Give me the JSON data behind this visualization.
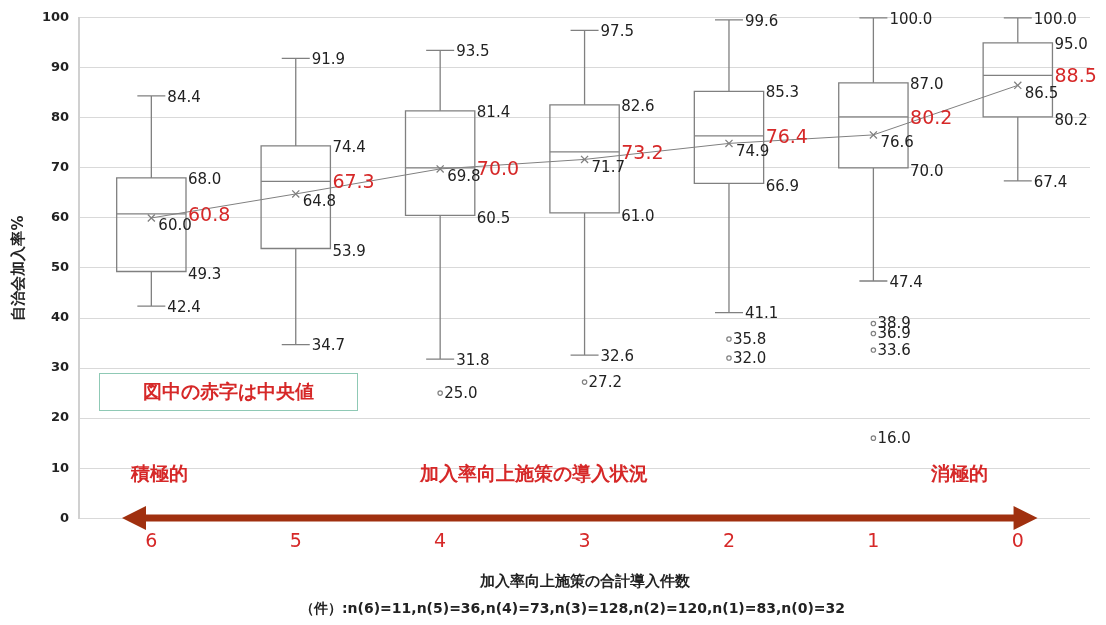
{
  "chart_data": {
    "type": "box",
    "ylabel": "自治会加入率%",
    "xlabel": "加入率向上施策の合計導入件数",
    "categories": [
      "6",
      "5",
      "4",
      "3",
      "2",
      "1",
      "0"
    ],
    "series": [
      {
        "type": "line",
        "color": "#808080",
        "values": [
          60.0,
          64.8,
          69.8,
          71.7,
          74.9,
          76.6,
          86.5
        ],
        "value_labels": [
          "60.0",
          "64.8",
          "69.8",
          "71.7",
          "74.9",
          "76.6",
          "86.5"
        ]
      },
      {
        "type": "box",
        "color": "#808080",
        "boxes": [
          {
            "low": 42.4,
            "q1": 49.3,
            "median": 60.8,
            "q3": 68.0,
            "high": 84.4
          },
          {
            "low": 34.7,
            "q1": 53.9,
            "median": 67.3,
            "q3": 74.4,
            "high": 91.9
          },
          {
            "low": 31.8,
            "q1": 60.5,
            "median": 70.0,
            "q3": 81.4,
            "high": 93.5
          },
          {
            "low": 32.6,
            "q1": 61.0,
            "median": 73.2,
            "q3": 82.6,
            "high": 97.5
          },
          {
            "low": 41.1,
            "q1": 66.9,
            "median": 76.4,
            "q3": 85.3,
            "high": 99.6
          },
          {
            "low": 47.4,
            "q1": 70.0,
            "median": 80.2,
            "q3": 87.0,
            "high": 100.0
          },
          {
            "low": 67.4,
            "q1": 80.2,
            "median": 88.5,
            "q3": 95.0,
            "high": 100.0
          }
        ]
      },
      {
        "type": "scatter",
        "color": "#808080",
        "marker": "circle",
        "x": [
          "4",
          "3",
          "2",
          "2",
          "1",
          "1",
          "1",
          "1"
        ],
        "values": [
          25.0,
          27.2,
          35.8,
          32.0,
          38.9,
          36.9,
          33.6,
          16.0
        ],
        "value_labels": [
          "25.0",
          "27.2",
          "35.8",
          "32.0",
          "38.9",
          "36.9",
          "33.6",
          "16.0"
        ]
      }
    ],
    "marker": "cross",
    "ylim": [
      0,
      100
    ],
    "yticks": [
      0,
      10,
      20,
      30,
      40,
      50,
      60,
      70,
      80,
      90,
      100
    ],
    "grid": "y",
    "legend": false,
    "annotations": [
      "図中の赤字は中央値",
      "積極的",
      "加入率向上施策の導入状況",
      "消極的",
      "（件）:n(6)=11,n(5)=36,n(4)=73,n(3)=128,n(2)=120,n(1)=83,n(0)=32",
      {
        "text": "84.4",
        "x": "6",
        "y": 84.4
      },
      {
        "text": "68.0",
        "x": "6",
        "y": 68.0
      },
      {
        "text": "60.8",
        "x": "6",
        "y": 60.8
      },
      {
        "text": "49.3",
        "x": "6",
        "y": 49.3
      },
      {
        "text": "42.4",
        "x": "6",
        "y": 42.4
      },
      {
        "text": "91.9",
        "x": "5",
        "y": 91.9
      },
      {
        "text": "74.4",
        "x": "5",
        "y": 74.4
      },
      {
        "text": "67.3",
        "x": "5",
        "y": 67.3
      },
      {
        "text": "53.9",
        "x": "5",
        "y": 53.9
      },
      {
        "text": "34.7",
        "x": "5",
        "y": 34.7
      },
      {
        "text": "93.5",
        "x": "4",
        "y": 93.5
      },
      {
        "text": "81.4",
        "x": "4",
        "y": 81.4
      },
      {
        "text": "70.0",
        "x": "4",
        "y": 70.0
      },
      {
        "text": "60.5",
        "x": "4",
        "y": 60.5
      },
      {
        "text": "31.8",
        "x": "4",
        "y": 31.8
      },
      {
        "text": "97.5",
        "x": "3",
        "y": 97.5
      },
      {
        "text": "82.6",
        "x": "3",
        "y": 82.6
      },
      {
        "text": "73.2",
        "x": "3",
        "y": 73.2
      },
      {
        "text": "61.0",
        "x": "3",
        "y": 61.0
      },
      {
        "text": "32.6",
        "x": "3",
        "y": 32.6
      },
      {
        "text": "99.6",
        "x": "2",
        "y": 99.6
      },
      {
        "text": "85.3",
        "x": "2",
        "y": 85.3
      },
      {
        "text": "76.4",
        "x": "2",
        "y": 76.4
      },
      {
        "text": "66.9",
        "x": "2",
        "y": 66.9
      },
      {
        "text": "41.1",
        "x": "2",
        "y": 41.1
      },
      {
        "text": "100.0",
        "x": "1",
        "y": 100.0
      },
      {
        "text": "87.0",
        "x": "1",
        "y": 87.0
      },
      {
        "text": "80.2",
        "x": "1",
        "y": 80.2
      },
      {
        "text": "70.0",
        "x": "1",
        "y": 70.0
      },
      {
        "text": "47.4",
        "x": "1",
        "y": 47.4
      },
      {
        "text": "100.0",
        "x": "0",
        "y": 100.0
      },
      {
        "text": "95.0",
        "x": "0",
        "y": 95.0
      },
      {
        "text": "88.5",
        "x": "0",
        "y": 88.5
      },
      {
        "text": "80.2",
        "x": "0",
        "y": 80.2
      },
      {
        "text": "67.4",
        "x": "0",
        "y": 67.4
      }
    ]
  }
}
